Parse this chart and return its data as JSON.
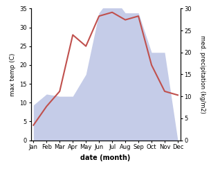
{
  "months": [
    "Jan",
    "Feb",
    "Mar",
    "Apr",
    "May",
    "Jun",
    "Jul",
    "Aug",
    "Sep",
    "Oct",
    "Nov",
    "Dec"
  ],
  "temperature": [
    4,
    9,
    13,
    28,
    25,
    33,
    34,
    32,
    33,
    20,
    13,
    12
  ],
  "precipitation": [
    8,
    10.5,
    10,
    10,
    15,
    29,
    33,
    29,
    29,
    20,
    20,
    0
  ],
  "temp_ylim": [
    0,
    35
  ],
  "precip_ylim": [
    0,
    30
  ],
  "temp_yticks": [
    0,
    5,
    10,
    15,
    20,
    25,
    30,
    35
  ],
  "precip_yticks": [
    0,
    5,
    10,
    15,
    20,
    25,
    30
  ],
  "xlabel": "date (month)",
  "ylabel_left": "max temp (C)",
  "ylabel_right": "med. precipitation (kg/m2)",
  "line_color": "#c0504d",
  "fill_color": "#c5cce8",
  "background_color": "#ffffff",
  "line_width": 1.5
}
